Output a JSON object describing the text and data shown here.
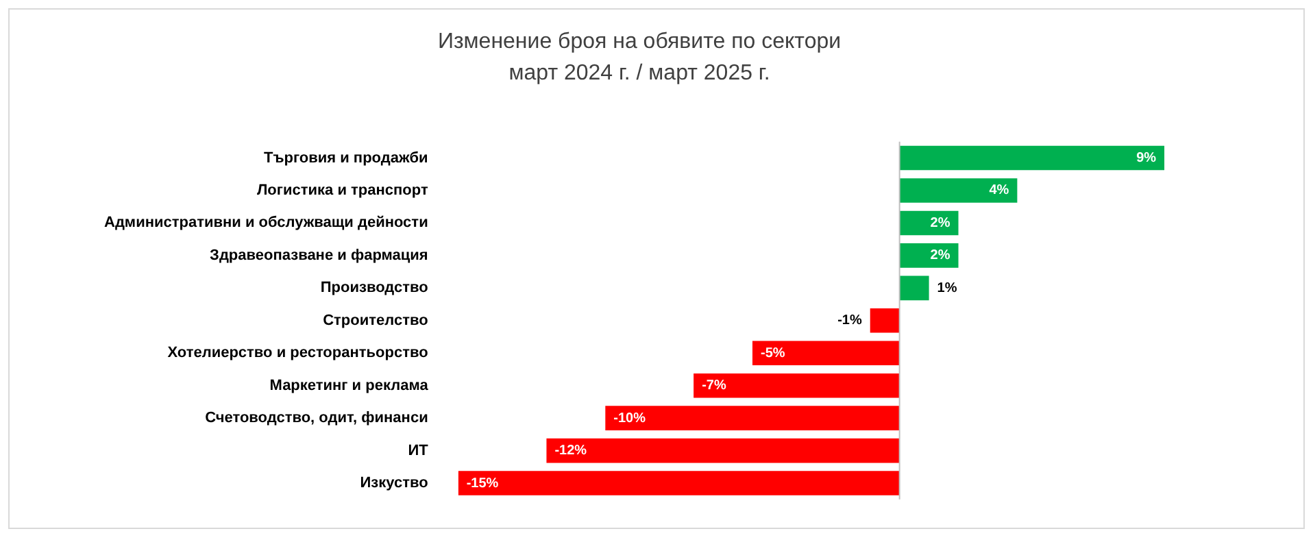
{
  "chart_data": {
    "type": "bar",
    "orientation": "horizontal",
    "title": "Изменение броя на обявите по сектори",
    "subtitle": "март 2024 г. / март 2025 г.",
    "categories": [
      "Търговия и продажби",
      "Логистика и транспорт",
      "Административни и обслужващи дейности",
      "Здравеопазване и фармация",
      "Производство",
      "Строителство",
      "Хотелиерство и ресторантьорство",
      "Маркетинг и реклама",
      "Счетоводство, одит, финанси",
      "ИТ",
      "Изкуство"
    ],
    "values": [
      9,
      4,
      2,
      2,
      1,
      -1,
      -5,
      -7,
      -10,
      -12,
      -15
    ],
    "value_labels": [
      "9%",
      "4%",
      "2%",
      "2%",
      "1%",
      "-1%",
      "-5%",
      "-7%",
      "-10%",
      "-12%",
      "-15%"
    ],
    "colors": [
      "#00b050",
      "#00b050",
      "#00b050",
      "#00b050",
      "#00b050",
      "#ff0000",
      "#ff0000",
      "#ff0000",
      "#ff0000",
      "#ff0000",
      "#ff0000"
    ],
    "grid": false,
    "legend": false
  }
}
